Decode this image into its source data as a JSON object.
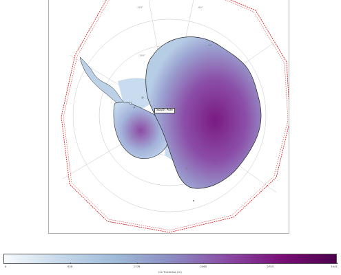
{
  "map": {
    "place_label": "South Pole",
    "graticule_labels": [
      "-120°",
      "-60°",
      "-150°",
      "-30°"
    ]
  },
  "colorbar": {
    "label": "Ice Thickness (m)",
    "ticks": [
      "0",
      "828",
      "1376",
      "2065",
      "2753",
      "3441"
    ],
    "colors": [
      "#f7fbfd",
      "#c7d9ea",
      "#9fbbd9",
      "#8c8dc2",
      "#8a4da6",
      "#7a0f78",
      "#4d004b"
    ]
  },
  "colors": {
    "ocean": "#ffffff",
    "ice_shelf": "#c9dcef",
    "ice_sheet_low": "#a8c4e0",
    "ice_sheet_high": "#7b1e82",
    "coastline": "#222222",
    "boundary": "#e00000",
    "graticule": "#bbbbbb"
  }
}
